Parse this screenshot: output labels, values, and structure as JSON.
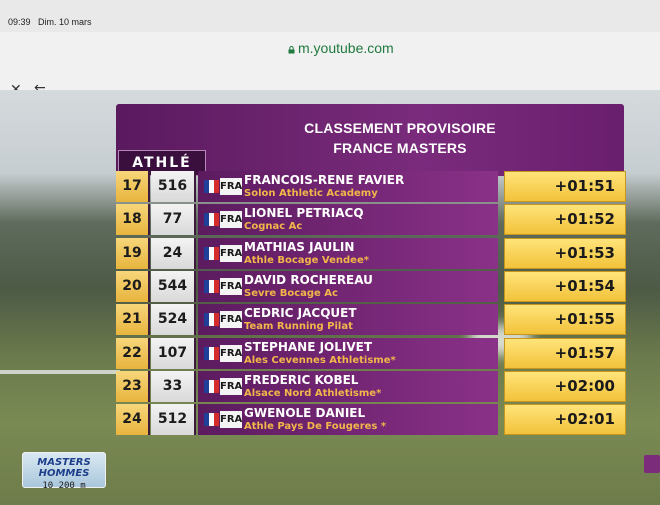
{
  "status_bar": {
    "time": "09:39",
    "date": "Dim. 10 mars"
  },
  "browser": {
    "url": "m.youtube.com",
    "close_icon": "close-icon",
    "back_icon": "arrow-left-icon"
  },
  "scoreboard": {
    "title_line1": "CLASSEMENT PROVISOIRE",
    "title_line2": "FRANCE MASTERS",
    "logo_text": "ATHLÉ",
    "colors": {
      "header_purple": "#7a2b7c",
      "rank_gold": "#e8b43d",
      "time_yellow": "#f2c23a",
      "club_orange": "#f2b64a"
    },
    "rows": [
      {
        "rank": "17",
        "bib": "516",
        "country": "FRA",
        "name": "FRANCOIS-RENE FAVIER",
        "club": "Solon Athletic Academy",
        "time": "+01:51"
      },
      {
        "rank": "18",
        "bib": "77",
        "country": "FRA",
        "name": "LIONEL PETRIACQ",
        "club": "Cognac Ac",
        "time": "+01:52"
      },
      {
        "rank": "19",
        "bib": "24",
        "country": "FRA",
        "name": "MATHIAS JAULIN",
        "club": "Athle Bocage Vendee*",
        "time": "+01:53"
      },
      {
        "rank": "20",
        "bib": "544",
        "country": "FRA",
        "name": "DAVID ROCHEREAU",
        "club": "Sevre Bocage Ac",
        "time": "+01:54"
      },
      {
        "rank": "21",
        "bib": "524",
        "country": "FRA",
        "name": "CEDRIC JACQUET",
        "club": "Team Running Pilat",
        "time": "+01:55"
      },
      {
        "rank": "22",
        "bib": "107",
        "country": "FRA",
        "name": "STEPHANE JOLIVET",
        "club": "Ales Cevennes Athletisme*",
        "time": "+01:57"
      },
      {
        "rank": "23",
        "bib": "33",
        "country": "FRA",
        "name": "FREDERIC KOBEL",
        "club": "Alsace Nord Athletisme*",
        "time": "+02:00"
      },
      {
        "rank": "24",
        "bib": "512",
        "country": "FRA",
        "name": "GWENOLE DANIEL",
        "club": "Athle Pays De Fougeres *",
        "time": "+02:01"
      }
    ]
  },
  "event": {
    "line1": "MASTERS HOMMES",
    "line2": "10 200 m"
  }
}
